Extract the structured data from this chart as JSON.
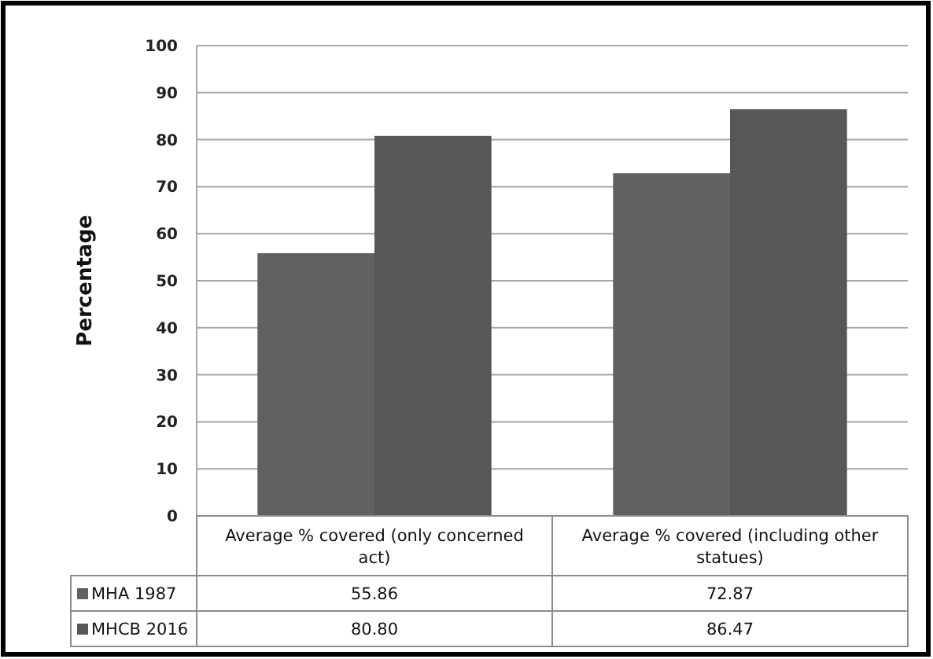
{
  "chart_data": {
    "type": "bar",
    "ylabel": "Percentage",
    "categories": [
      "Average % covered (only concerned act)",
      "Average % covered (including other statues)"
    ],
    "series": [
      {
        "name": "MHA 1987",
        "color": "#616161",
        "values": [
          55.86,
          72.87
        ],
        "value_labels": [
          "55.86",
          "72.87"
        ]
      },
      {
        "name": "MHCB 2016",
        "color": "#575757",
        "values": [
          80.8,
          86.47
        ],
        "value_labels": [
          "80.80",
          "86.47"
        ]
      }
    ],
    "ylim": [
      0,
      100
    ],
    "yticks": [
      0,
      10,
      20,
      30,
      40,
      50,
      60,
      70,
      80,
      90,
      100
    ],
    "grid": "y",
    "legend": "bottom",
    "data_labels": true
  }
}
